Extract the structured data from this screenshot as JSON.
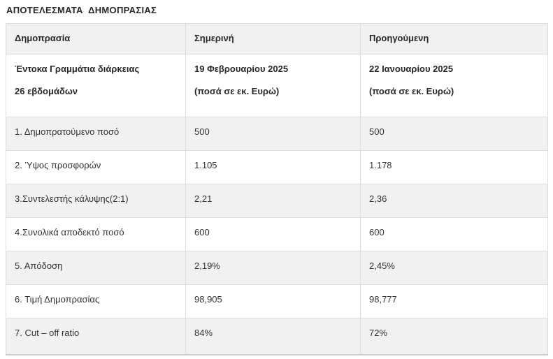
{
  "page": {
    "title": "ΑΠΟΤΕΛΕΣΜΑΤΑ  ΔΗΜΟΠΡΑΣΙΑΣ"
  },
  "table": {
    "columns": [
      "Δημοπρασία",
      "Σημερινή",
      "Προηγούμενη"
    ],
    "subheader": {
      "instrument": [
        "Έντοκα Γραμμάτια διάρκειας",
        "26 εβδομάδων"
      ],
      "current": [
        "19 Φεβρουαρίου 2025",
        "(ποσά σε εκ. Ευρώ)"
      ],
      "previous": [
        "22 Ιανουαρίου 2025",
        "(ποσά σε εκ. Ευρώ)"
      ]
    },
    "rows": [
      {
        "label": "1. Δημοπρατούμενο ποσό",
        "current": "500",
        "previous": "500"
      },
      {
        "label": "2. Ύψος προσφορών",
        "current": "1.105",
        "previous": "1.178"
      },
      {
        "label": "3.Συντελεστής κάλυψης(2:1)",
        "current": "2,21",
        "previous": "2,36"
      },
      {
        "label": "4.Συνολικά αποδεκτό ποσό",
        "current": "600",
        "previous": "600"
      },
      {
        "label": "5. Απόδοση",
        "current": "2,19%",
        "previous": "2,45%"
      },
      {
        "label": "6. Τιμή Δημοπρασίας",
        "current": "98,905",
        "previous": "98,777"
      },
      {
        "label": "7. Cut – off ratio",
        "current": "84%",
        "previous": "72%"
      }
    ]
  },
  "colors": {
    "stripe_background": "#f1f1f2",
    "cell_border": "#dcdce1",
    "bottom_border": "#ced0d6",
    "heading_text": "#26282c",
    "body_text": "#333333"
  },
  "chart_data": {
    "type": "table",
    "title": "ΑΠΟΤΕΛΕΣΜΑΤΑ ΔΗΜΟΠΡΑΣΙΑΣ",
    "columns": [
      "Δημοπρασία",
      "Σημερινή",
      "Προηγούμενη"
    ],
    "rows": [
      [
        "Έντοκα Γραμμάτια διάρκειας 26 εβδομάδων",
        "19 Φεβρουαρίου 2025 (ποσά σε εκ. Ευρώ)",
        "22 Ιανουαρίου 2025 (ποσά σε εκ. Ευρώ)"
      ],
      [
        "1. Δημοπρατούμενο ποσό",
        "500",
        "500"
      ],
      [
        "2. Ύψος προσφορών",
        "1.105",
        "1.178"
      ],
      [
        "3.Συντελεστής κάλυψης(2:1)",
        "2,21",
        "2,36"
      ],
      [
        "4.Συνολικά αποδεκτό ποσό",
        "600",
        "600"
      ],
      [
        "5. Απόδοση",
        "2,19%",
        "2,45%"
      ],
      [
        "6. Τιμή Δημοπρασίας",
        "98,905",
        "98,777"
      ],
      [
        "7. Cut – off ratio",
        "84%",
        "72%"
      ]
    ],
    "layout": {
      "striped": true,
      "stripe_rows": "odd data rows (1,3,5,7) shaded",
      "header_row_shaded": true
    }
  }
}
